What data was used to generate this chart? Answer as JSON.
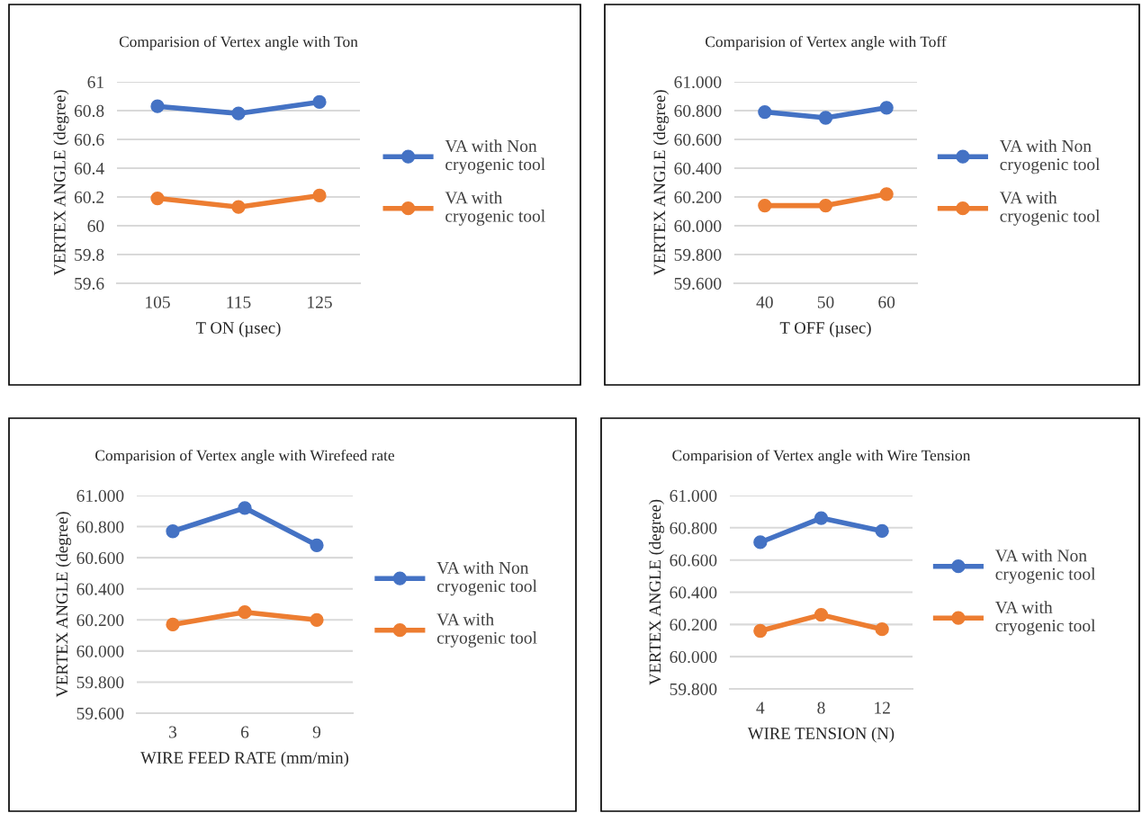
{
  "chart_data": [
    {
      "type": "line",
      "title": "Comparision of Vertex angle with Ton",
      "xlabel": "T ON (µsec)",
      "ylabel": "VERTEX ANGLE (degree)",
      "categories": [
        "105",
        "115",
        "125"
      ],
      "ylim": [
        59.6,
        61
      ],
      "yticks": [
        59.6,
        59.8,
        60,
        60.2,
        60.4,
        60.6,
        60.8,
        61
      ],
      "grid": "y",
      "legend": "right",
      "marker": "circle",
      "series": [
        {
          "name": "VA with Non cryogenic tool",
          "color": "#4472c4",
          "values": [
            60.83,
            60.78,
            60.86
          ]
        },
        {
          "name": "VA with cryogenic tool",
          "color": "#ed7d31",
          "values": [
            60.19,
            60.13,
            60.21
          ]
        }
      ]
    },
    {
      "type": "line",
      "title": "Comparision of Vertex angle with Toff",
      "xlabel": "T OFF (µsec)",
      "ylabel": "VERTEX ANGLE (degree)",
      "categories": [
        "40",
        "50",
        "60"
      ],
      "ylim": [
        59.6,
        61
      ],
      "yticks": [
        {
          "value": 59.6,
          "label": "59.600"
        },
        {
          "value": 59.8,
          "label": "59.800"
        },
        {
          "value": 60,
          "label": "60.000"
        },
        {
          "value": 60.2,
          "label": "60.200"
        },
        {
          "value": 60.4,
          "label": "60.400"
        },
        {
          "value": 60.6,
          "label": "60.600"
        },
        {
          "value": 60.8,
          "label": "60.800"
        },
        {
          "value": 61,
          "label": "61.000"
        }
      ],
      "grid": "y",
      "legend": "right",
      "marker": "circle",
      "series": [
        {
          "name": "VA with Non cryogenic tool",
          "color": "#4472c4",
          "values": [
            60.79,
            60.75,
            60.82
          ]
        },
        {
          "name": "VA with cryogenic tool",
          "color": "#ed7d31",
          "values": [
            60.14,
            60.14,
            60.22
          ]
        }
      ]
    },
    {
      "type": "line",
      "title": "Comparision of Vertex angle with Wirefeed rate",
      "xlabel": "WIRE FEED RATE (mm/min)",
      "ylabel": "VERTEX ANGLE (degree)",
      "categories": [
        "3",
        "6",
        "9"
      ],
      "ylim": [
        59.6,
        61
      ],
      "yticks": [
        {
          "value": 59.6,
          "label": "59.600"
        },
        {
          "value": 59.8,
          "label": "59.800"
        },
        {
          "value": 60,
          "label": "60.000"
        },
        {
          "value": 60.2,
          "label": "60.200"
        },
        {
          "value": 60.4,
          "label": "60.400"
        },
        {
          "value": 60.6,
          "label": "60.600"
        },
        {
          "value": 60.8,
          "label": "60.800"
        },
        {
          "value": 61,
          "label": "61.000"
        }
      ],
      "grid": "y",
      "legend": "right",
      "marker": "circle",
      "series": [
        {
          "name": "VA with Non cryogenic tool",
          "color": "#4472c4",
          "values": [
            60.77,
            60.92,
            60.68
          ]
        },
        {
          "name": "VA with cryogenic tool",
          "color": "#ed7d31",
          "values": [
            60.17,
            60.25,
            60.2
          ]
        }
      ]
    },
    {
      "type": "line",
      "title": "Comparision of Vertex angle with Wire Tension",
      "xlabel": "WIRE TENSION (N)",
      "ylabel": "VERTEX ANGLE (degree)",
      "categories": [
        "4",
        "8",
        "12"
      ],
      "ylim": [
        59.8,
        61
      ],
      "yticks": [
        {
          "value": 59.8,
          "label": "59.800"
        },
        {
          "value": 60,
          "label": "60.000"
        },
        {
          "value": 60.2,
          "label": "60.200"
        },
        {
          "value": 60.4,
          "label": "60.400"
        },
        {
          "value": 60.6,
          "label": "60.600"
        },
        {
          "value": 60.8,
          "label": "60.800"
        },
        {
          "value": 61,
          "label": "61.000"
        }
      ],
      "grid": "y",
      "legend": "right",
      "marker": "circle",
      "series": [
        {
          "name": "VA with Non cryogenic tool",
          "color": "#4472c4",
          "values": [
            60.71,
            60.86,
            60.78
          ]
        },
        {
          "name": "VA with cryogenic tool",
          "color": "#ed7d31",
          "values": [
            60.16,
            60.26,
            60.17
          ]
        }
      ]
    }
  ]
}
